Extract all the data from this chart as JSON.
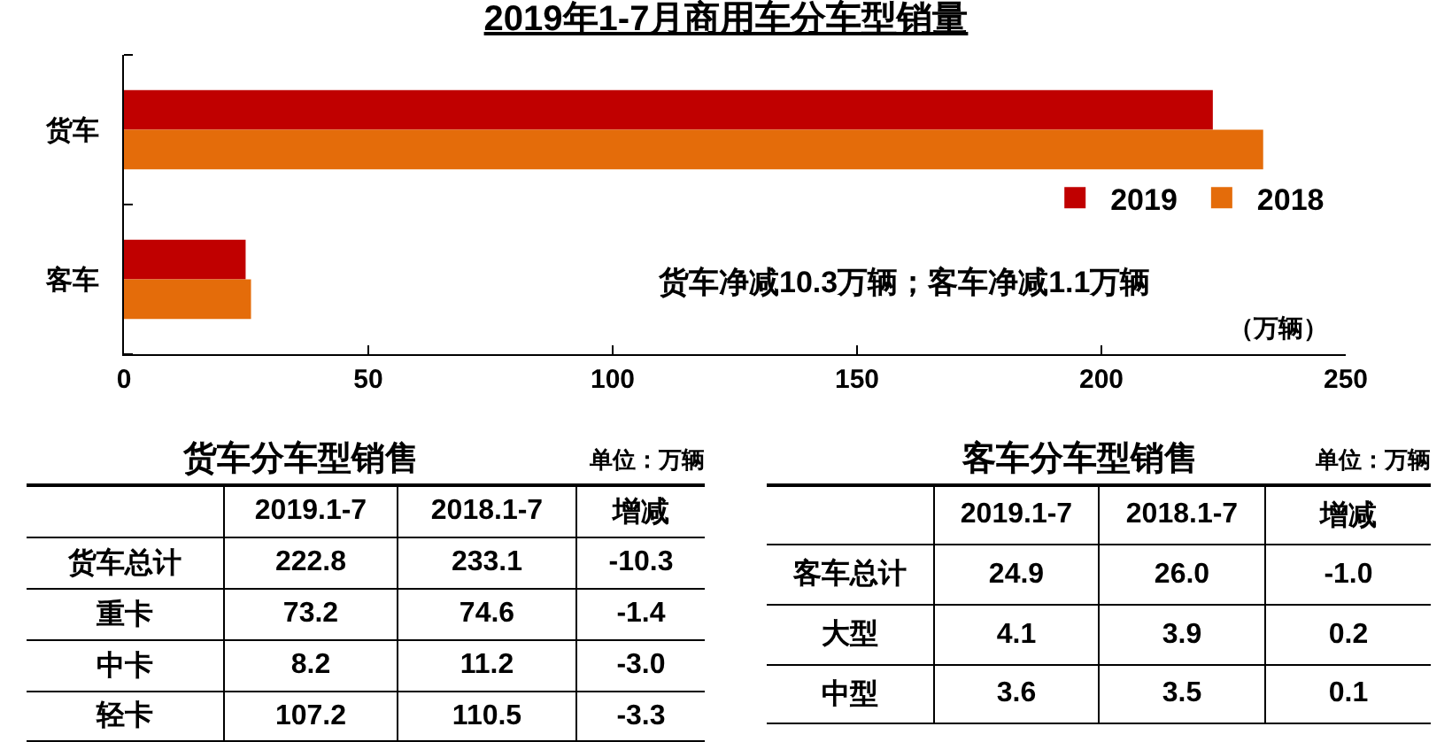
{
  "chart_data": [
    {
      "type": "bar",
      "title": "2019年1-7月商用车分车型销量",
      "xlabel": "（万辆）",
      "orientation": "horizontal",
      "categories": [
        "货车",
        "客车"
      ],
      "series": [
        {
          "name": "2019",
          "color": "#c00000",
          "values": [
            222.8,
            24.9
          ]
        },
        {
          "name": "2018",
          "color": "#e46c0a",
          "values": [
            233.1,
            26.0
          ]
        }
      ],
      "xlim": [
        0,
        250
      ],
      "xticks": [
        0,
        50,
        100,
        150,
        200,
        250
      ],
      "grid": false,
      "legend": "right",
      "annotations": [
        "货车净减10.3万辆；客车净减1.1万辆"
      ]
    },
    {
      "type": "other",
      "title": "货车分车型销售",
      "annotations": [
        "单位：万辆"
      ],
      "categories": [
        "2019.1-7",
        "2018.1-7",
        "增减"
      ],
      "y_categories": [
        "货车总计",
        "重卡",
        "中卡",
        "轻卡"
      ],
      "cell_labels": [
        [
          "222.8",
          "233.1",
          "-10.3"
        ],
        [
          "73.2",
          "74.6",
          "-1.4"
        ],
        [
          "8.2",
          "11.2",
          "-3.0"
        ],
        [
          "107.2",
          "110.5",
          "-3.3"
        ]
      ]
    },
    {
      "type": "other",
      "title": "客车分车型销售",
      "annotations": [
        "单位：万辆"
      ],
      "categories": [
        "2019.1-7",
        "2018.1-7",
        "增减"
      ],
      "y_categories": [
        "客车总计",
        "大型",
        "中型"
      ],
      "cell_labels": [
        [
          "24.9",
          "26.0",
          "-1.0"
        ],
        [
          "4.1",
          "3.9",
          "0.2"
        ],
        [
          "3.6",
          "3.5",
          "0.1"
        ]
      ]
    }
  ]
}
